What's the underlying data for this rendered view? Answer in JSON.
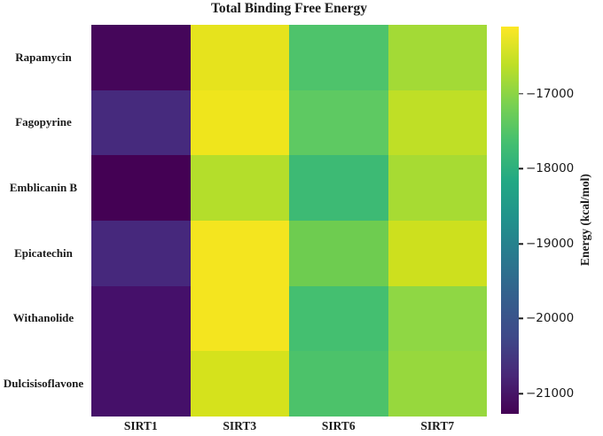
{
  "chart_data": {
    "type": "heatmap",
    "title": "Total Binding Free Energy",
    "x_categories": [
      "SIRT1",
      "SIRT3",
      "SIRT6",
      "SIRT7"
    ],
    "y_categories": [
      "Rapamycin",
      "Fagopyrine",
      "Emblicanin B",
      "Epicatechin",
      "Withanolide",
      "Dulcisisoflavone"
    ],
    "values": [
      [
        -21100,
        -16400,
        -17550,
        -16850
      ],
      [
        -20550,
        -16300,
        -17350,
        -16600
      ],
      [
        -21270,
        -16700,
        -17800,
        -16800
      ],
      [
        -20500,
        -16200,
        -17250,
        -16500
      ],
      [
        -20900,
        -16200,
        -17650,
        -17000
      ],
      [
        -20900,
        -16450,
        -17600,
        -16900
      ]
    ],
    "cell_colors": [
      [
        "#45065a",
        "#e6e31d",
        "#4ec36b",
        "#a3da36"
      ],
      [
        "#462a7d",
        "#efe51c",
        "#5ec962",
        "#bfdf26"
      ],
      [
        "#440154",
        "#b4de2b",
        "#3dba74",
        "#a7db33"
      ],
      [
        "#46287c",
        "#f4e51f",
        "#6ecc50",
        "#cde01e"
      ],
      [
        "#45106a",
        "#f4e51f",
        "#44bf70",
        "#8fd744"
      ],
      [
        "#451069",
        "#d5e21c",
        "#4cc26a",
        "#97d83d"
      ]
    ],
    "colorbar": {
      "label": "Energy (kcal/mol)",
      "colormap": "viridis",
      "vmin": -21270,
      "vmax": -16100,
      "tick_labels": [
        "−17000",
        "−18000",
        "−19000",
        "−20000",
        "−21000"
      ],
      "tick_values": [
        -17000,
        -18000,
        -19000,
        -20000,
        -21000
      ],
      "tick_positions_pct": [
        17.4,
        36.7,
        56.1,
        75.4,
        94.8
      ],
      "gradient_stops": [
        "#fde725",
        "#bddf26",
        "#7ad151",
        "#44bf70",
        "#22a884",
        "#21918c",
        "#2a788e",
        "#355f8d",
        "#3e4989",
        "#482878",
        "#440154"
      ]
    },
    "legend_position": "right",
    "grid": false,
    "text_color": "#1a1a1a",
    "background_color": "#ffffff"
  }
}
